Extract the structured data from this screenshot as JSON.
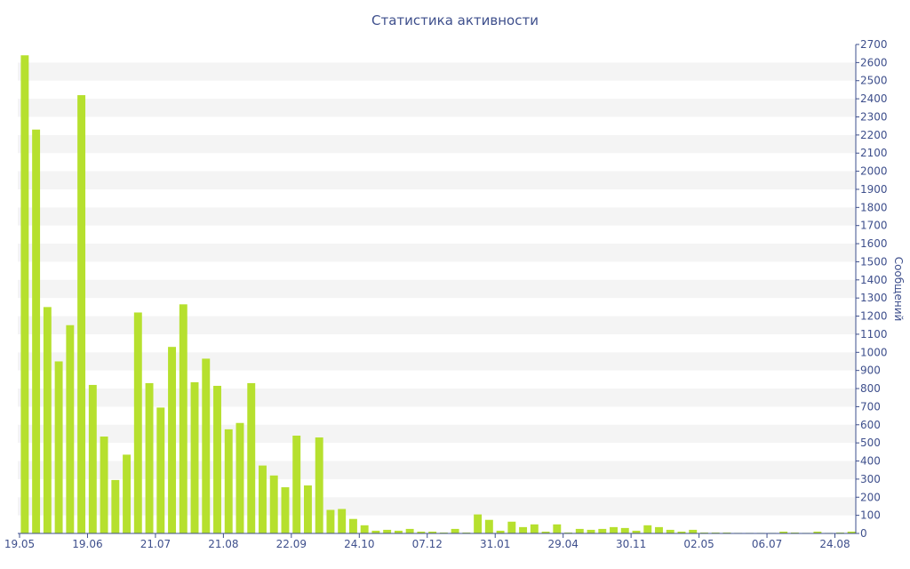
{
  "chart_data": {
    "type": "bar",
    "title": "Статистика активности",
    "xlabel": "",
    "ylabel": "Сообщений",
    "ylim": [
      0,
      2700
    ],
    "y_ticks": [
      0,
      100,
      200,
      300,
      400,
      500,
      600,
      700,
      800,
      900,
      1000,
      1100,
      1200,
      1300,
      1400,
      1500,
      1600,
      1700,
      1800,
      1900,
      2000,
      2100,
      2200,
      2300,
      2400,
      2500,
      2600,
      2700
    ],
    "x_tick_labels": [
      {
        "label": "19.05",
        "at_bar": 0
      },
      {
        "label": "19.06",
        "at_bar": 6
      },
      {
        "label": "21.07",
        "at_bar": 12
      },
      {
        "label": "21.08",
        "at_bar": 18
      },
      {
        "label": "22.09",
        "at_bar": 24
      },
      {
        "label": "24.10",
        "at_bar": 30
      },
      {
        "label": "07.12",
        "at_bar": 36
      },
      {
        "label": "31.01",
        "at_bar": 42
      },
      {
        "label": "29.04",
        "at_bar": 48
      },
      {
        "label": "30.11",
        "at_bar": 54
      },
      {
        "label": "02.05",
        "at_bar": 60
      },
      {
        "label": "06.07",
        "at_bar": 66
      },
      {
        "label": "24.08",
        "at_bar": 72
      }
    ],
    "bar_color": "#b6e02e",
    "band_color": "#f4f4f4",
    "grid": "alternating horizontal bands",
    "values": [
      2640,
      2230,
      1250,
      950,
      1150,
      2420,
      820,
      535,
      295,
      435,
      1220,
      830,
      695,
      1030,
      1265,
      835,
      965,
      815,
      575,
      610,
      830,
      375,
      320,
      255,
      540,
      265,
      530,
      130,
      135,
      80,
      45,
      15,
      20,
      15,
      25,
      10,
      10,
      5,
      25,
      5,
      105,
      75,
      15,
      65,
      35,
      50,
      10,
      50,
      5,
      25,
      20,
      25,
      35,
      30,
      15,
      45,
      35,
      20,
      10,
      20,
      5,
      5,
      5,
      3,
      3,
      3,
      3,
      10,
      5,
      3,
      10,
      3,
      5,
      10
    ]
  }
}
